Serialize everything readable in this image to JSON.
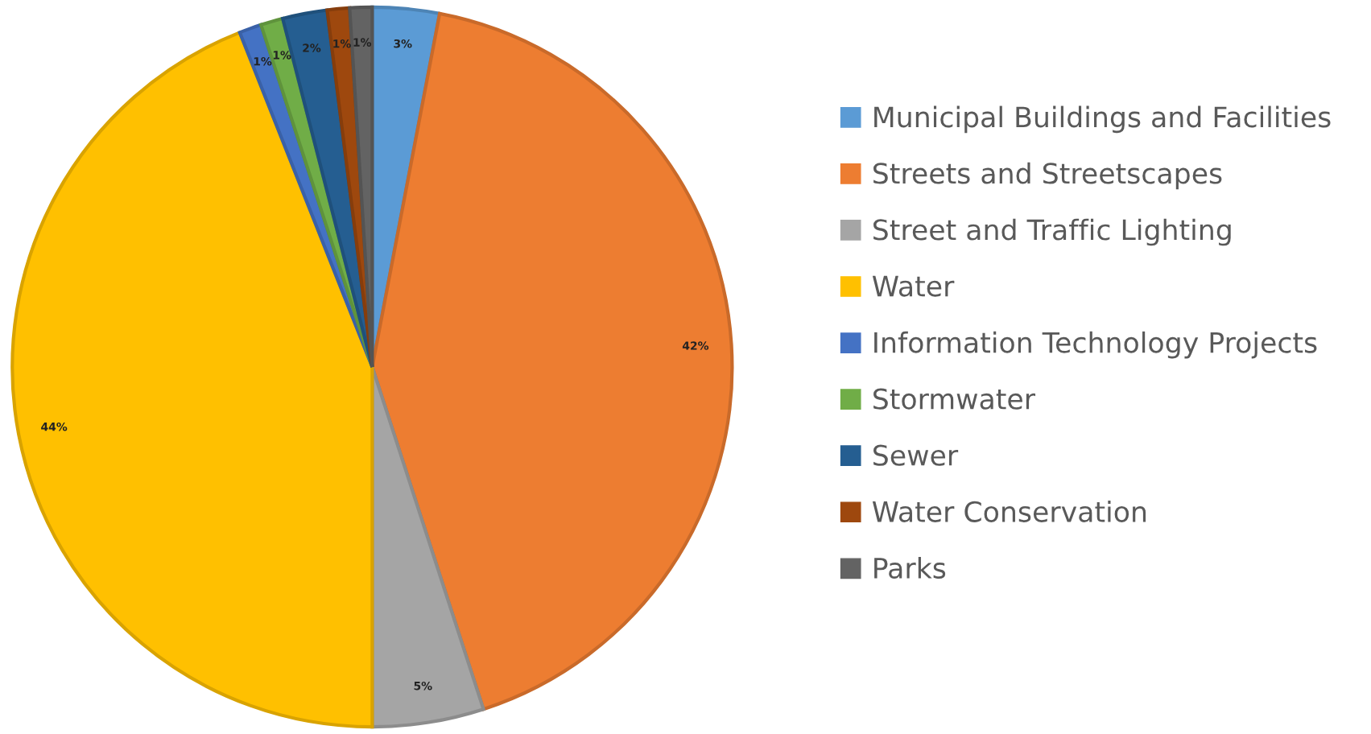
{
  "chart_data": {
    "type": "pie",
    "categories": [
      "Municipal Buildings and Facilities",
      "Streets and Streetscapes",
      "Street and Traffic Lighting",
      "Water",
      "Information Technology Projects",
      "Stormwater",
      "Sewer",
      "Water Conservation",
      "Parks"
    ],
    "values": [
      3,
      42,
      5,
      44,
      1,
      1,
      2,
      1,
      1
    ],
    "colors": [
      "#5b9bd5",
      "#ed7d31",
      "#a5a5a5",
      "#ffc000",
      "#4472c4",
      "#70ad47",
      "#255e91",
      "#9e480e",
      "#636363"
    ],
    "value_labels": [
      "3%",
      "42%",
      "5%",
      "44%",
      "1%",
      "1%",
      "2%",
      "1%",
      "1%"
    ],
    "legend": "right"
  }
}
